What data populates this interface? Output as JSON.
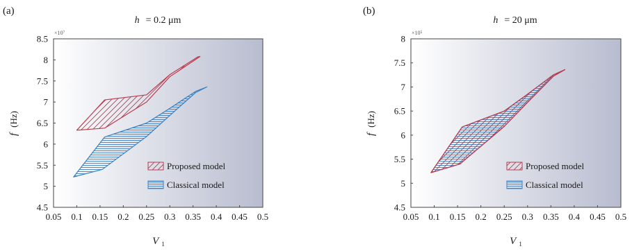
{
  "chart_data": [
    {
      "type": "area",
      "panel_label": "(a)",
      "title": {
        "symbol": "h",
        "value": "= 0.2 μm"
      },
      "xlabel": {
        "symbol": "V",
        "subscript": "1"
      },
      "ylabel": {
        "symbol": "f",
        "unit": "(Hz)"
      },
      "y_multiplier": "×10⁷",
      "xlim": [
        0.05,
        0.5
      ],
      "ylim": [
        4.5,
        8.5
      ],
      "xticks": [
        "0.05",
        "0.1",
        "0.15",
        "0.2",
        "0.25",
        "0.3",
        "0.35",
        "0.4",
        "0.45",
        "0.5"
      ],
      "yticks": [
        "4.5",
        "5",
        "5.5",
        "6",
        "6.5",
        "7",
        "7.5",
        "8",
        "8.5"
      ],
      "legend_position": "bottom-right",
      "series": [
        {
          "name": "Proposed model",
          "color": "#c0394b",
          "hatch": "diagonal",
          "upper": [
            [
              0.1,
              6.33
            ],
            [
              0.16,
              7.05
            ],
            [
              0.25,
              7.17
            ],
            [
              0.3,
              7.65
            ],
            [
              0.36,
              8.07
            ],
            [
              0.365,
              8.08
            ]
          ],
          "lower": [
            [
              0.1,
              6.33
            ],
            [
              0.16,
              6.38
            ],
            [
              0.25,
              7.0
            ],
            [
              0.3,
              7.6
            ],
            [
              0.365,
              8.08
            ]
          ]
        },
        {
          "name": "Classical model",
          "color": "#3a82c4",
          "hatch": "horizontal",
          "upper": [
            [
              0.093,
              5.22
            ],
            [
              0.16,
              6.17
            ],
            [
              0.25,
              6.5
            ],
            [
              0.3,
              6.85
            ],
            [
              0.355,
              7.25
            ],
            [
              0.38,
              7.36
            ]
          ],
          "lower": [
            [
              0.093,
              5.22
            ],
            [
              0.155,
              5.4
            ],
            [
              0.25,
              6.18
            ],
            [
              0.3,
              6.68
            ],
            [
              0.355,
              7.22
            ],
            [
              0.38,
              7.36
            ]
          ]
        }
      ]
    },
    {
      "type": "area",
      "panel_label": "(b)",
      "title": {
        "symbol": "h",
        "value": "= 20 μm"
      },
      "xlabel": {
        "symbol": "V",
        "subscript": "1"
      },
      "ylabel": {
        "symbol": "f",
        "unit": "(Hz)"
      },
      "y_multiplier": "×10⁵",
      "xlim": [
        0.05,
        0.5
      ],
      "ylim": [
        4.5,
        8.0
      ],
      "xticks": [
        "0.05",
        "0.1",
        "0.15",
        "0.2",
        "0.25",
        "0.3",
        "0.35",
        "0.4",
        "0.45",
        "0.5"
      ],
      "yticks": [
        "4.5",
        "5",
        "5.5",
        "6",
        "6.5",
        "7",
        "7.5",
        "8"
      ],
      "legend_position": "bottom-right",
      "series": [
        {
          "name": "Proposed model",
          "color": "#c0394b",
          "hatch": "diagonal",
          "upper": [
            [
              0.093,
              5.22
            ],
            [
              0.16,
              6.17
            ],
            [
              0.25,
              6.5
            ],
            [
              0.3,
              6.85
            ],
            [
              0.355,
              7.25
            ],
            [
              0.38,
              7.36
            ]
          ],
          "lower": [
            [
              0.093,
              5.22
            ],
            [
              0.155,
              5.4
            ],
            [
              0.25,
              6.18
            ],
            [
              0.3,
              6.68
            ],
            [
              0.355,
              7.22
            ],
            [
              0.38,
              7.36
            ]
          ]
        },
        {
          "name": "Classical model",
          "color": "#3a82c4",
          "hatch": "horizontal",
          "upper": [
            [
              0.093,
              5.22
            ],
            [
              0.16,
              6.17
            ],
            [
              0.25,
              6.5
            ],
            [
              0.3,
              6.85
            ],
            [
              0.355,
              7.25
            ],
            [
              0.38,
              7.36
            ]
          ],
          "lower": [
            [
              0.093,
              5.22
            ],
            [
              0.155,
              5.4
            ],
            [
              0.25,
              6.18
            ],
            [
              0.3,
              6.68
            ],
            [
              0.355,
              7.22
            ],
            [
              0.38,
              7.36
            ]
          ]
        }
      ]
    }
  ]
}
